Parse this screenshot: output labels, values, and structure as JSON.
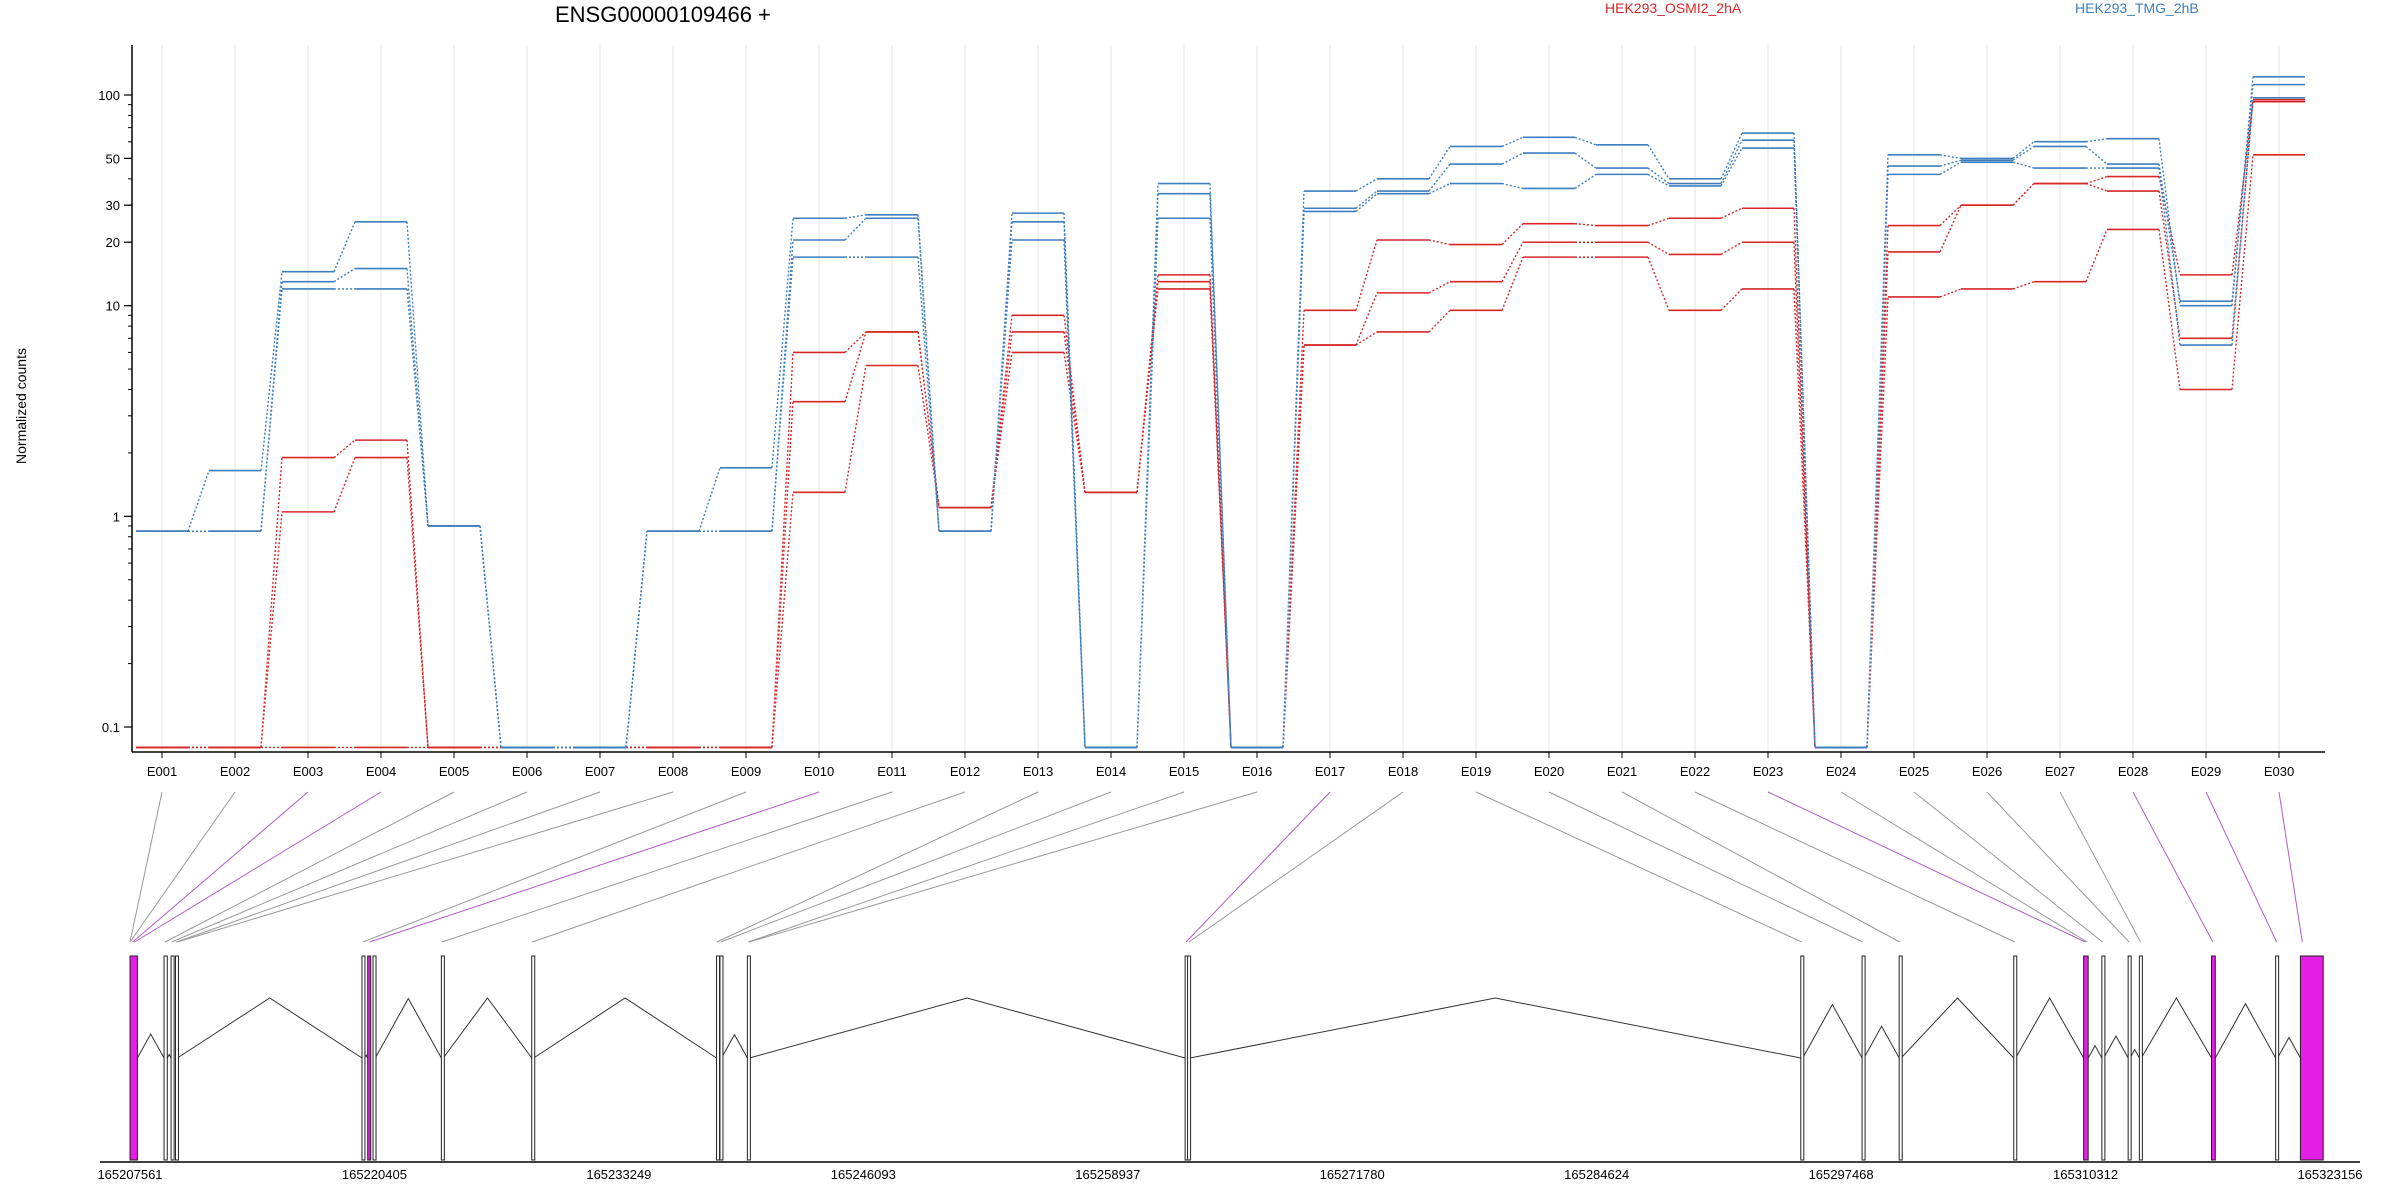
{
  "chart_data": {
    "type": "line",
    "title": "ENSG00000109466 +",
    "ylabel": "Normalized counts",
    "yscale": "log",
    "ylim": [
      0.08,
      140
    ],
    "yticks": [
      0.1,
      1,
      10,
      20,
      30,
      50,
      100
    ],
    "ytick_labels": [
      "0.1",
      "1",
      "10",
      "20",
      "30",
      "50",
      "100"
    ],
    "grid": "vertical lines at exon centers",
    "legend_position": "top",
    "exons": [
      "E001",
      "E002",
      "E003",
      "E004",
      "E005",
      "E006",
      "E007",
      "E008",
      "E009",
      "E010",
      "E011",
      "E012",
      "E013",
      "E014",
      "E015",
      "E016",
      "E017",
      "E018",
      "E019",
      "E020",
      "E021",
      "E022",
      "E023",
      "E024",
      "E025",
      "E026",
      "E027",
      "E028",
      "E029",
      "E030"
    ],
    "series": [
      {
        "group": "HEK293_OSMI2_2hA",
        "color": "#d62728",
        "values": [
          0.08,
          0.08,
          1.9,
          2.3,
          0.08,
          0.08,
          0.08,
          0.08,
          0.08,
          3.5,
          7.5,
          1.1,
          9,
          1.3,
          14,
          0.08,
          9.5,
          20.5,
          19.5,
          24.5,
          24,
          26,
          29,
          0.08,
          24,
          30,
          38,
          41,
          14,
          93
        ]
      },
      {
        "group": "HEK293_OSMI2_2hA",
        "color": "#d62728",
        "values": [
          0.08,
          0.08,
          1.05,
          1.9,
          0.08,
          0.08,
          0.08,
          0.08,
          0.08,
          6,
          7.5,
          1.1,
          7.5,
          1.3,
          13,
          0.08,
          6.5,
          11.5,
          13,
          20,
          20,
          17.5,
          20,
          0.08,
          18,
          30,
          38,
          35,
          7,
          95
        ]
      },
      {
        "group": "HEK293_OSMI2_2hA",
        "color": "#d62728",
        "values": [
          0.08,
          0.08,
          0.08,
          0.08,
          0.08,
          0.08,
          0.08,
          0.08,
          0.08,
          1.3,
          5.2,
          1.1,
          6,
          1.3,
          12,
          0.08,
          6.5,
          7.5,
          9.5,
          17,
          17,
          9.5,
          12,
          0.08,
          11,
          12,
          13,
          23,
          4,
          52
        ]
      },
      {
        "group": "HEK293_TMG_2hB",
        "color": "#3d7ebf",
        "values": [
          0.85,
          1.65,
          14.5,
          25,
          0.9,
          0.08,
          0.08,
          0.85,
          1.7,
          26,
          27,
          0.85,
          27.5,
          0.08,
          38,
          0.08,
          35,
          40,
          57,
          63,
          58,
          40,
          66,
          0.08,
          52,
          50,
          60,
          62,
          10,
          122
        ]
      },
      {
        "group": "HEK293_TMG_2hB",
        "color": "#3d7ebf",
        "values": [
          0.85,
          0.85,
          13,
          15,
          0.9,
          0.08,
          0.08,
          0.85,
          0.85,
          20.5,
          26,
          0.85,
          25,
          0.08,
          34,
          0.08,
          29,
          35,
          47,
          53,
          45,
          38,
          61,
          0.08,
          46,
          49,
          57,
          47,
          10.5,
          112
        ]
      },
      {
        "group": "HEK293_TMG_2hB",
        "color": "#3d7ebf",
        "values": [
          0.85,
          0.85,
          12,
          12,
          0.9,
          0.08,
          0.08,
          0.85,
          0.85,
          17,
          17,
          0.85,
          20.5,
          0.08,
          26,
          0.08,
          28,
          34,
          38,
          36,
          42,
          37,
          56,
          0.08,
          42,
          48,
          45,
          45,
          6.5,
          97
        ]
      }
    ],
    "gene_model": {
      "coordinate_ticks": [
        "165207561",
        "165220405",
        "165233249",
        "165246093",
        "165258937",
        "165271780",
        "165284624",
        "165297468",
        "165310312",
        "165323156"
      ],
      "coordinate_range": [
        165207561,
        165323156
      ],
      "exon_features": [
        {
          "start": 165207561,
          "end": 165207950,
          "highlight": true
        },
        {
          "start": 165209350,
          "end": 165209520,
          "highlight": false
        },
        {
          "start": 165209720,
          "end": 165209820,
          "highlight": false
        },
        {
          "start": 165209950,
          "end": 165210050,
          "highlight": false
        },
        {
          "start": 165219750,
          "end": 165219880,
          "highlight": false
        },
        {
          "start": 165220050,
          "end": 165220200,
          "highlight": true
        },
        {
          "start": 165220330,
          "end": 165220450,
          "highlight": false
        },
        {
          "start": 165223920,
          "end": 165224020,
          "highlight": false
        },
        {
          "start": 165228670,
          "end": 165228770,
          "highlight": false
        },
        {
          "start": 165238380,
          "end": 165238480,
          "highlight": false
        },
        {
          "start": 165238560,
          "end": 165238640,
          "highlight": false
        },
        {
          "start": 165240000,
          "end": 165240100,
          "highlight": false
        },
        {
          "start": 165263000,
          "end": 165263120,
          "highlight": false
        },
        {
          "start": 165263130,
          "end": 165263250,
          "highlight": false
        },
        {
          "start": 165295350,
          "end": 165295450,
          "highlight": false
        },
        {
          "start": 165298570,
          "end": 165298670,
          "highlight": false
        },
        {
          "start": 165300520,
          "end": 165300620,
          "highlight": false
        },
        {
          "start": 165306540,
          "end": 165306640,
          "highlight": false
        },
        {
          "start": 165310210,
          "end": 165310450,
          "highlight": true
        },
        {
          "start": 165311170,
          "end": 165311270,
          "highlight": false
        },
        {
          "start": 165312550,
          "end": 165312650,
          "highlight": false
        },
        {
          "start": 165313140,
          "end": 165313240,
          "highlight": false
        },
        {
          "start": 165316930,
          "end": 165317130,
          "highlight": true
        },
        {
          "start": 165320300,
          "end": 165320400,
          "highlight": false
        },
        {
          "start": 165321600,
          "end": 165322800,
          "highlight": true
        }
      ],
      "exon_links": [
        {
          "exon": "E001",
          "pos": 165207561,
          "highlight": false
        },
        {
          "exon": "E002",
          "pos": 165207561,
          "highlight": false
        },
        {
          "exon": "E003",
          "pos": 165207700,
          "highlight": true
        },
        {
          "exon": "E004",
          "pos": 165207800,
          "highlight": true
        },
        {
          "exon": "E005",
          "pos": 165209400,
          "highlight": false
        },
        {
          "exon": "E006",
          "pos": 165209750,
          "highlight": false
        },
        {
          "exon": "E007",
          "pos": 165210000,
          "highlight": false
        },
        {
          "exon": "E008",
          "pos": 165210050,
          "highlight": false
        },
        {
          "exon": "E009",
          "pos": 165219800,
          "highlight": false
        },
        {
          "exon": "E010",
          "pos": 165220150,
          "highlight": true
        },
        {
          "exon": "E011",
          "pos": 165223950,
          "highlight": false
        },
        {
          "exon": "E012",
          "pos": 165228700,
          "highlight": false
        },
        {
          "exon": "E013",
          "pos": 165238400,
          "highlight": false
        },
        {
          "exon": "E014",
          "pos": 165238600,
          "highlight": false
        },
        {
          "exon": "E015",
          "pos": 165240050,
          "highlight": false
        },
        {
          "exon": "E016",
          "pos": 165240100,
          "highlight": false
        },
        {
          "exon": "E017",
          "pos": 165263050,
          "highlight": true
        },
        {
          "exon": "E018",
          "pos": 165263200,
          "highlight": false
        },
        {
          "exon": "E019",
          "pos": 165295400,
          "highlight": false
        },
        {
          "exon": "E020",
          "pos": 165298600,
          "highlight": false
        },
        {
          "exon": "E021",
          "pos": 165300550,
          "highlight": false
        },
        {
          "exon": "E022",
          "pos": 165306600,
          "highlight": false
        },
        {
          "exon": "E023",
          "pos": 165310300,
          "highlight": true
        },
        {
          "exon": "E024",
          "pos": 165310400,
          "highlight": false
        },
        {
          "exon": "E025",
          "pos": 165311200,
          "highlight": false
        },
        {
          "exon": "E026",
          "pos": 165312600,
          "highlight": false
        },
        {
          "exon": "E027",
          "pos": 165313200,
          "highlight": false
        },
        {
          "exon": "E028",
          "pos": 165317000,
          "highlight": true
        },
        {
          "exon": "E029",
          "pos": 165320350,
          "highlight": true
        },
        {
          "exon": "E030",
          "pos": 165321700,
          "highlight": true
        }
      ]
    }
  },
  "legend": [
    {
      "label": "HEK293_OSMI2_2hA",
      "color": "#d62728"
    },
    {
      "label": "HEK293_TMG_2hB",
      "color": "#3d7ebf"
    }
  ],
  "colors": {
    "osmi": "#d62728",
    "tmg": "#3d7ebf",
    "highlight_exon": "#e51ee5",
    "grid": "#e6e6e6",
    "axis": "#000000",
    "link_normal": "#999999",
    "link_highlight": "#b45cc8"
  }
}
